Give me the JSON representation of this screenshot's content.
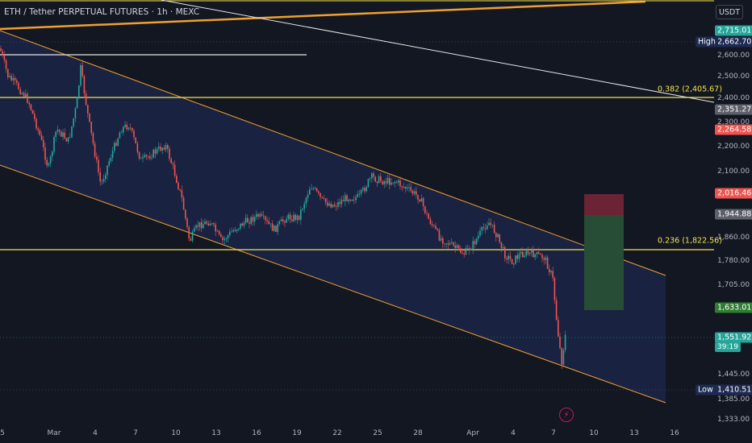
{
  "header": {
    "title": "ETH / Tether PERPETUAL FUTURES · 1h · MEXC",
    "currency": "USDT"
  },
  "price_axis": {
    "ticks": [
      "2,600.00",
      "2,500.00",
      "2,400.00",
      "2,300.00",
      "2,200.00",
      "2,100.00",
      "1,860.00",
      "1,780.00",
      "1,705.00",
      "1,445.00",
      "1,385.00",
      "1,333.00"
    ],
    "tags": {
      "top_green": "2,715.01",
      "high": "2,662.70",
      "gray_upper": "2,351.27",
      "red_upper": "2,264.58",
      "red_stop": "2,016.46",
      "gray_entry": "1,944.88",
      "green_target": "1,633.01",
      "current_price": "1,551.92",
      "countdown": "39:19",
      "low": "1,410.51"
    },
    "side_labels": {
      "high": "High",
      "low": "Low"
    }
  },
  "time_axis": {
    "ticks": [
      "5",
      "Mar",
      "4",
      "7",
      "10",
      "13",
      "16",
      "19",
      "22",
      "25",
      "28",
      "Apr",
      "4",
      "7",
      "10",
      "13",
      "16"
    ]
  },
  "fib_levels": {
    "upper": "0.382 (2,405.67)",
    "lower": "0.236 (1,822.56)"
  },
  "colors": {
    "background": "#131722",
    "channel_fill": "#1b2646",
    "channel_line": "#f0a030",
    "fib_line": "#f5e34b",
    "bull": "#26a69a",
    "bear": "#ef5350",
    "stop_zone": "#6b2434",
    "target_zone": "#274d36"
  },
  "icons": {
    "alert": "lightning-bolt-icon"
  }
}
